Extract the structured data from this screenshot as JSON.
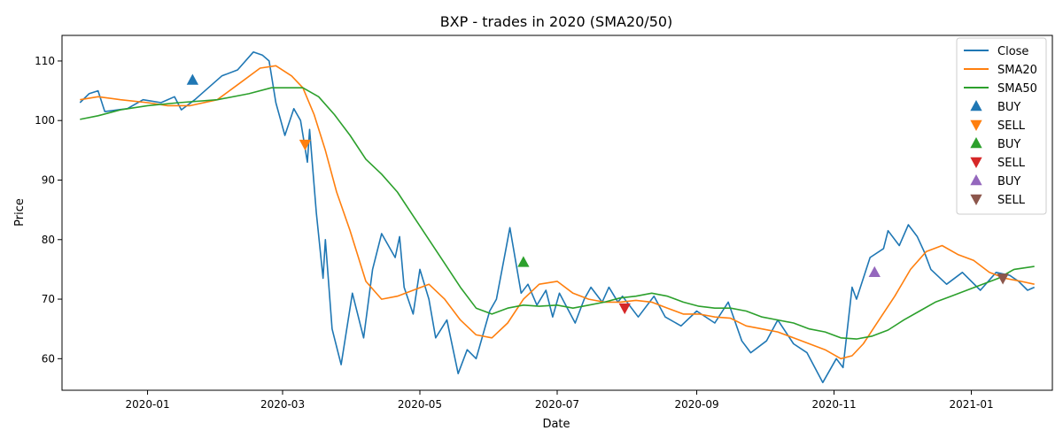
{
  "chart_data": {
    "type": "line",
    "title": "BXP - trades in 2020 (SMA20/50)",
    "xlabel": "Date",
    "ylabel": "Price",
    "xlim": [
      "2019-11-24",
      "2021-02-06"
    ],
    "ylim": [
      54.7,
      114.3
    ],
    "x_ticks": [
      "2020-01-01",
      "2020-03-01",
      "2020-05-01",
      "2020-07-01",
      "2020-09-01",
      "2020-11-01",
      "2021-01-01"
    ],
    "x_tick_labels": [
      "2020-01",
      "2020-03",
      "2020-05",
      "2020-07",
      "2020-09",
      "2020-11",
      "2021-01"
    ],
    "y_ticks": [
      60,
      70,
      80,
      90,
      100,
      110
    ],
    "grid": false,
    "legend_position": "top-right",
    "series": [
      {
        "name": "Close",
        "color": "#1f77b4",
        "points": [
          [
            "2019-12-02",
            103
          ],
          [
            "2019-12-06",
            104.5
          ],
          [
            "2019-12-10",
            105
          ],
          [
            "2019-12-13",
            101.5
          ],
          [
            "2019-12-19",
            101.8
          ],
          [
            "2019-12-23",
            102
          ],
          [
            "2019-12-30",
            103.5
          ],
          [
            "2020-01-07",
            103
          ],
          [
            "2020-01-13",
            104
          ],
          [
            "2020-01-16",
            101.8
          ],
          [
            "2020-01-22",
            103.5
          ],
          [
            "2020-01-28",
            105.5
          ],
          [
            "2020-02-03",
            107.5
          ],
          [
            "2020-02-10",
            108.5
          ],
          [
            "2020-02-17",
            111.5
          ],
          [
            "2020-02-21",
            111
          ],
          [
            "2020-02-24",
            110
          ],
          [
            "2020-02-27",
            103
          ],
          [
            "2020-03-02",
            97.5
          ],
          [
            "2020-03-06",
            102
          ],
          [
            "2020-03-09",
            100
          ],
          [
            "2020-03-12",
            93
          ],
          [
            "2020-03-13",
            98.5
          ],
          [
            "2020-03-16",
            84.5
          ],
          [
            "2020-03-19",
            73.5
          ],
          [
            "2020-03-20",
            80
          ],
          [
            "2020-03-23",
            65
          ],
          [
            "2020-03-27",
            59
          ],
          [
            "2020-04-01",
            71
          ],
          [
            "2020-04-06",
            63.5
          ],
          [
            "2020-04-10",
            75
          ],
          [
            "2020-04-14",
            81
          ],
          [
            "2020-04-20",
            77
          ],
          [
            "2020-04-22",
            80.5
          ],
          [
            "2020-04-24",
            72
          ],
          [
            "2020-04-28",
            67.5
          ],
          [
            "2020-05-01",
            75
          ],
          [
            "2020-05-05",
            70
          ],
          [
            "2020-05-08",
            63.5
          ],
          [
            "2020-05-13",
            66.5
          ],
          [
            "2020-05-18",
            57.5
          ],
          [
            "2020-05-22",
            61.5
          ],
          [
            "2020-05-26",
            60
          ],
          [
            "2020-06-01",
            68
          ],
          [
            "2020-06-04",
            70
          ],
          [
            "2020-06-08",
            78
          ],
          [
            "2020-06-10",
            82
          ],
          [
            "2020-06-15",
            71
          ],
          [
            "2020-06-18",
            72.5
          ],
          [
            "2020-06-22",
            69
          ],
          [
            "2020-06-26",
            71.5
          ],
          [
            "2020-06-29",
            67
          ],
          [
            "2020-07-02",
            71
          ],
          [
            "2020-07-09",
            66
          ],
          [
            "2020-07-13",
            70
          ],
          [
            "2020-07-16",
            72
          ],
          [
            "2020-07-21",
            69.5
          ],
          [
            "2020-07-24",
            72
          ],
          [
            "2020-07-28",
            69.5
          ],
          [
            "2020-07-30",
            70.5
          ],
          [
            "2020-08-06",
            67
          ],
          [
            "2020-08-13",
            70.5
          ],
          [
            "2020-08-18",
            67
          ],
          [
            "2020-08-25",
            65.5
          ],
          [
            "2020-09-01",
            68
          ],
          [
            "2020-09-09",
            66
          ],
          [
            "2020-09-15",
            69.5
          ],
          [
            "2020-09-21",
            63
          ],
          [
            "2020-09-25",
            61
          ],
          [
            "2020-10-02",
            63
          ],
          [
            "2020-10-07",
            66.5
          ],
          [
            "2020-10-14",
            62.5
          ],
          [
            "2020-10-20",
            61
          ],
          [
            "2020-10-27",
            56
          ],
          [
            "2020-11-02",
            60
          ],
          [
            "2020-11-05",
            58.5
          ],
          [
            "2020-11-09",
            72
          ],
          [
            "2020-11-11",
            70
          ],
          [
            "2020-11-17",
            77
          ],
          [
            "2020-11-23",
            78.5
          ],
          [
            "2020-11-25",
            81.5
          ],
          [
            "2020-11-30",
            79
          ],
          [
            "2020-12-04",
            82.5
          ],
          [
            "2020-12-08",
            80.5
          ],
          [
            "2020-12-11",
            78
          ],
          [
            "2020-12-14",
            75
          ],
          [
            "2020-12-21",
            72.5
          ],
          [
            "2020-12-28",
            74.5
          ],
          [
            "2021-01-05",
            71.5
          ],
          [
            "2021-01-12",
            74.5
          ],
          [
            "2021-01-18",
            74
          ],
          [
            "2021-01-22",
            73
          ],
          [
            "2021-01-26",
            71.5
          ],
          [
            "2021-01-29",
            72
          ]
        ]
      },
      {
        "name": "SMA20",
        "color": "#ff7f0e",
        "points": [
          [
            "2019-12-02",
            103.5
          ],
          [
            "2019-12-10",
            104
          ],
          [
            "2019-12-20",
            103.5
          ],
          [
            "2020-01-01",
            103
          ],
          [
            "2020-01-10",
            102.5
          ],
          [
            "2020-01-20",
            102.5
          ],
          [
            "2020-02-01",
            103.5
          ],
          [
            "2020-02-10",
            106
          ],
          [
            "2020-02-20",
            108.8
          ],
          [
            "2020-02-27",
            109.2
          ],
          [
            "2020-03-05",
            107.5
          ],
          [
            "2020-03-10",
            105.5
          ],
          [
            "2020-03-15",
            101
          ],
          [
            "2020-03-20",
            95
          ],
          [
            "2020-03-25",
            88
          ],
          [
            "2020-03-31",
            81.5
          ],
          [
            "2020-04-07",
            73
          ],
          [
            "2020-04-14",
            70
          ],
          [
            "2020-04-21",
            70.5
          ],
          [
            "2020-04-28",
            71.5
          ],
          [
            "2020-05-05",
            72.5
          ],
          [
            "2020-05-12",
            70
          ],
          [
            "2020-05-19",
            66.5
          ],
          [
            "2020-05-26",
            64
          ],
          [
            "2020-06-02",
            63.5
          ],
          [
            "2020-06-09",
            66
          ],
          [
            "2020-06-16",
            70
          ],
          [
            "2020-06-23",
            72.5
          ],
          [
            "2020-07-01",
            73
          ],
          [
            "2020-07-08",
            71
          ],
          [
            "2020-07-15",
            70
          ],
          [
            "2020-07-22",
            69.5
          ],
          [
            "2020-07-29",
            69.5
          ],
          [
            "2020-08-05",
            69.8
          ],
          [
            "2020-08-12",
            69.5
          ],
          [
            "2020-08-19",
            68.5
          ],
          [
            "2020-08-26",
            67.5
          ],
          [
            "2020-09-02",
            67.5
          ],
          [
            "2020-09-09",
            67
          ],
          [
            "2020-09-16",
            66.8
          ],
          [
            "2020-09-23",
            65.5
          ],
          [
            "2020-09-30",
            65
          ],
          [
            "2020-10-07",
            64.5
          ],
          [
            "2020-10-14",
            63.5
          ],
          [
            "2020-10-21",
            62.5
          ],
          [
            "2020-10-28",
            61.5
          ],
          [
            "2020-11-04",
            60
          ],
          [
            "2020-11-09",
            60.5
          ],
          [
            "2020-11-14",
            62.5
          ],
          [
            "2020-11-21",
            66.5
          ],
          [
            "2020-11-28",
            70.5
          ],
          [
            "2020-12-05",
            75
          ],
          [
            "2020-12-12",
            78
          ],
          [
            "2020-12-19",
            79
          ],
          [
            "2020-12-26",
            77.5
          ],
          [
            "2021-01-02",
            76.5
          ],
          [
            "2021-01-09",
            74.5
          ],
          [
            "2021-01-16",
            73.5
          ],
          [
            "2021-01-23",
            73
          ],
          [
            "2021-01-29",
            72.5
          ]
        ]
      },
      {
        "name": "SMA50",
        "color": "#2ca02c",
        "points": [
          [
            "2019-12-02",
            100.2
          ],
          [
            "2019-12-10",
            100.8
          ],
          [
            "2019-12-20",
            101.8
          ],
          [
            "2020-01-01",
            102.5
          ],
          [
            "2020-01-15",
            103
          ],
          [
            "2020-02-01",
            103.5
          ],
          [
            "2020-02-15",
            104.5
          ],
          [
            "2020-02-25",
            105.5
          ],
          [
            "2020-03-10",
            105.5
          ],
          [
            "2020-03-17",
            104
          ],
          [
            "2020-03-24",
            101
          ],
          [
            "2020-03-31",
            97.5
          ],
          [
            "2020-04-07",
            93.5
          ],
          [
            "2020-04-14",
            91
          ],
          [
            "2020-04-21",
            88
          ],
          [
            "2020-04-28",
            84
          ],
          [
            "2020-05-05",
            80
          ],
          [
            "2020-05-12",
            76
          ],
          [
            "2020-05-19",
            72
          ],
          [
            "2020-05-26",
            68.5
          ],
          [
            "2020-06-02",
            67.5
          ],
          [
            "2020-06-09",
            68.5
          ],
          [
            "2020-06-16",
            69
          ],
          [
            "2020-06-23",
            68.8
          ],
          [
            "2020-07-01",
            69
          ],
          [
            "2020-07-08",
            68.5
          ],
          [
            "2020-07-15",
            69
          ],
          [
            "2020-07-22",
            69.5
          ],
          [
            "2020-07-29",
            70.2
          ],
          [
            "2020-08-05",
            70.5
          ],
          [
            "2020-08-12",
            71
          ],
          [
            "2020-08-19",
            70.5
          ],
          [
            "2020-08-26",
            69.5
          ],
          [
            "2020-09-02",
            68.8
          ],
          [
            "2020-09-09",
            68.5
          ],
          [
            "2020-09-16",
            68.5
          ],
          [
            "2020-09-23",
            68
          ],
          [
            "2020-09-30",
            67
          ],
          [
            "2020-10-07",
            66.5
          ],
          [
            "2020-10-14",
            66
          ],
          [
            "2020-10-21",
            65
          ],
          [
            "2020-10-28",
            64.5
          ],
          [
            "2020-11-04",
            63.5
          ],
          [
            "2020-11-11",
            63.3
          ],
          [
            "2020-11-18",
            63.8
          ],
          [
            "2020-11-25",
            64.8
          ],
          [
            "2020-12-02",
            66.5
          ],
          [
            "2020-12-09",
            68
          ],
          [
            "2020-12-16",
            69.5
          ],
          [
            "2020-12-23",
            70.5
          ],
          [
            "2020-12-30",
            71.5
          ],
          [
            "2021-01-06",
            72.5
          ],
          [
            "2021-01-13",
            73.5
          ],
          [
            "2021-01-20",
            75
          ],
          [
            "2021-01-29",
            75.5
          ]
        ]
      }
    ],
    "markers": [
      {
        "name": "BUY",
        "shape": "triangle-up",
        "color": "#1f77b4",
        "x": "2020-01-21",
        "y": 106.8
      },
      {
        "name": "SELL",
        "shape": "triangle-down",
        "color": "#ff7f0e",
        "x": "2020-03-11",
        "y": 96
      },
      {
        "name": "BUY",
        "shape": "triangle-up",
        "color": "#2ca02c",
        "x": "2020-06-16",
        "y": 76.2
      },
      {
        "name": "SELL",
        "shape": "triangle-down",
        "color": "#d62728",
        "x": "2020-07-31",
        "y": 68.5
      },
      {
        "name": "BUY",
        "shape": "triangle-up",
        "color": "#9467bd",
        "x": "2020-11-19",
        "y": 74.5
      },
      {
        "name": "SELL",
        "shape": "triangle-down",
        "color": "#8c564b",
        "x": "2021-01-15",
        "y": 73.5
      }
    ]
  }
}
